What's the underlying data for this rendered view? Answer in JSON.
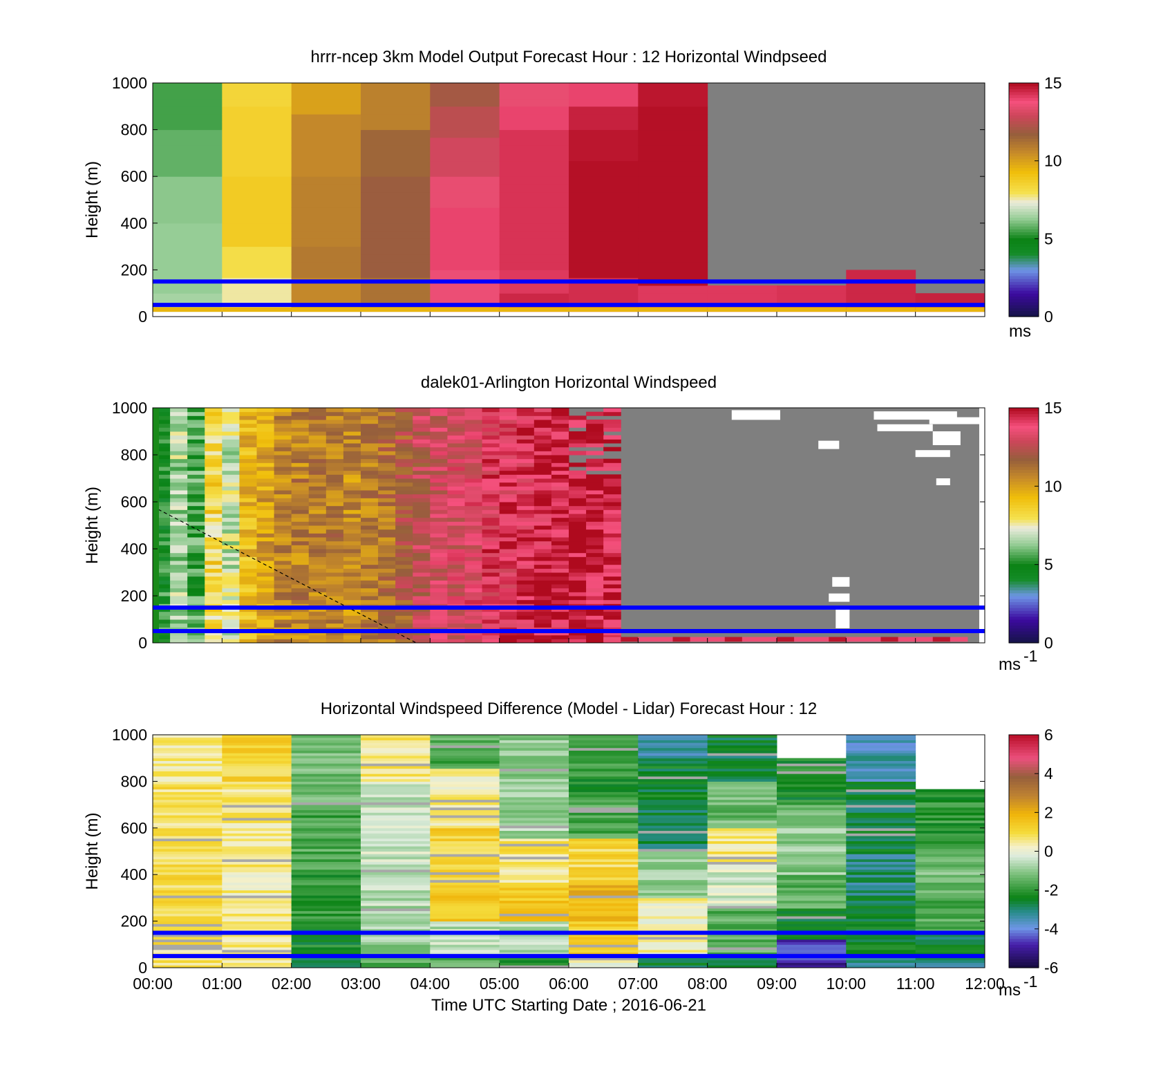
{
  "chart_data": [
    {
      "type": "heatmap",
      "title": "hrrr-ncep 3km Model Output   Forecast Hour : 12 Horizontal Windpseed",
      "ylabel": "Height (m)",
      "xlabel": "",
      "ylim": [
        0,
        1000
      ],
      "yticks": [
        "0",
        "200",
        "400",
        "600",
        "800",
        "1000"
      ],
      "xlim": [
        "00:00",
        "12:00"
      ],
      "colorbar": {
        "min": 0,
        "max": 15,
        "ticks": [
          "0",
          "5",
          "10",
          "15"
        ],
        "unit": "ms",
        "unit_sup": ""
      },
      "reference_lines_m": [
        50,
        150
      ],
      "columns": [
        {
          "time": "00:00-01:00",
          "levels": [
            [
              1000,
              5.5
            ],
            [
              800,
              5.8
            ],
            [
              600,
              6.2
            ],
            [
              400,
              6.3
            ],
            [
              100,
              6.5
            ]
          ]
        },
        {
          "time": "01:00-02:00",
          "levels": [
            [
              1000,
              8.4
            ],
            [
              900,
              8.6
            ],
            [
              600,
              8.8
            ],
            [
              300,
              8.1
            ],
            [
              150,
              7.6
            ]
          ]
        },
        {
          "time": "02:00-03:00",
          "levels": [
            [
              1000,
              10
            ],
            [
              850,
              10.6
            ],
            [
              600,
              10.8
            ],
            [
              300,
              11.0
            ],
            [
              150,
              10.6
            ]
          ]
        },
        {
          "time": "03:00-04:00",
          "levels": [
            [
              1000,
              10.8
            ],
            [
              800,
              11.5
            ],
            [
              600,
              11.8
            ],
            [
              300,
              11.8
            ],
            [
              150,
              11.2
            ]
          ]
        },
        {
          "time": "04:00-05:00",
          "levels": [
            [
              1000,
              12
            ],
            [
              900,
              12.5
            ],
            [
              750,
              13
            ],
            [
              600,
              13.5
            ],
            [
              450,
              14
            ],
            [
              200,
              13.6
            ]
          ]
        },
        {
          "time": "05:00-06:00",
          "levels": [
            [
              1000,
              13.5
            ],
            [
              900,
              14
            ],
            [
              800,
              14.3
            ],
            [
              200,
              14.2
            ],
            [
              100,
              14.5
            ]
          ]
        },
        {
          "time": "06:00-07:00",
          "levels": [
            [
              1000,
              14
            ],
            [
              900,
              14.6
            ],
            [
              800,
              14.8
            ],
            [
              650,
              14.9
            ],
            [
              150,
              14.4
            ]
          ]
        },
        {
          "time": "07:00-08:00",
          "levels": [
            [
              1000,
              14.8
            ],
            [
              900,
              14.9
            ],
            [
              120,
              14.2
            ]
          ]
        },
        {
          "time": "08:00-09:00",
          "levels": [
            [
              120,
              14.2
            ]
          ]
        },
        {
          "time": "09:00-10:00",
          "levels": [
            [
              130,
              14.3
            ]
          ]
        },
        {
          "time": "10:00-11:00",
          "levels": [
            [
              200,
              14.5
            ]
          ]
        },
        {
          "time": "11:00-12:00",
          "levels": [
            [
              100,
              14.6
            ]
          ]
        }
      ]
    },
    {
      "type": "heatmap",
      "title": "dalek01-Arlington  Horizontal Windspeed",
      "ylabel": "Height (m)",
      "xlabel": "",
      "ylim": [
        0,
        1000
      ],
      "yticks": [
        "0",
        "200",
        "400",
        "600",
        "800",
        "1000"
      ],
      "xlim": [
        "00:00",
        "12:00"
      ],
      "colorbar": {
        "min": 0,
        "max": 15,
        "ticks": [
          "0",
          "5",
          "10",
          "15"
        ],
        "unit": "ms",
        "unit_sup": "-1"
      },
      "reference_lines_m": [
        50,
        150
      ],
      "dashed_line": [
        [
          "00:00",
          580
        ],
        [
          "03:48",
          0
        ]
      ],
      "time_mean_speed": [
        [
          "00:00",
          5.0
        ],
        [
          "00:15",
          6.6
        ],
        [
          "00:30",
          5.5
        ],
        [
          "00:45",
          8.4
        ],
        [
          "01:00",
          7.0
        ],
        [
          "01:15",
          9.3
        ],
        [
          "01:30",
          10.0
        ],
        [
          "01:45",
          10.6
        ],
        [
          "02:00",
          10.8
        ],
        [
          "02:15",
          10.9
        ],
        [
          "02:30",
          11.0
        ],
        [
          "02:45",
          10.6
        ],
        [
          "03:00",
          10.9
        ],
        [
          "03:15",
          11.2
        ],
        [
          "03:30",
          11.8
        ],
        [
          "03:45",
          12.6
        ],
        [
          "04:00",
          13.0
        ],
        [
          "04:15",
          13.2
        ],
        [
          "04:30",
          13.4
        ],
        [
          "04:45",
          13.9
        ],
        [
          "05:00",
          14.0
        ],
        [
          "05:15",
          14.2
        ],
        [
          "05:30",
          14.4
        ],
        [
          "05:45",
          14.6
        ],
        [
          "06:00",
          14.8
        ],
        [
          "06:15",
          14.6
        ],
        [
          "06:30",
          14.6
        ]
      ]
    },
    {
      "type": "heatmap",
      "title": "Horizontal Windspeed Difference (Model - Lidar) Forecast Hour : 12",
      "ylabel": "Height (m)",
      "xlabel": "Time UTC  Starting Date ; 2016-06-21",
      "ylim": [
        0,
        1000
      ],
      "yticks": [
        "0",
        "200",
        "400",
        "600",
        "800",
        "1000"
      ],
      "xticks": [
        "00:00",
        "01:00",
        "02:00",
        "03:00",
        "04:00",
        "05:00",
        "06:00",
        "07:00",
        "08:00",
        "09:00",
        "10:00",
        "11:00",
        "12:00"
      ],
      "colorbar": {
        "min": -6,
        "max": 6,
        "ticks": [
          "-6",
          "-4",
          "-2",
          "0",
          "2",
          "4",
          "6"
        ],
        "unit": "ms",
        "unit_sup": "-1"
      },
      "reference_lines_m": [
        50,
        150
      ],
      "columns": [
        {
          "time": "00:00-01:00",
          "levels": [
            [
              1000,
              0.5
            ],
            [
              800,
              0.8
            ],
            [
              400,
              1.0
            ],
            [
              100,
              0.7
            ]
          ]
        },
        {
          "time": "01:00-02:00",
          "levels": [
            [
              1000,
              1.1
            ],
            [
              800,
              0.6
            ],
            [
              400,
              0.5
            ],
            [
              100,
              0.4
            ]
          ]
        },
        {
          "time": "02:00-03:00",
          "levels": [
            [
              1000,
              -1.2
            ],
            [
              700,
              -1.7
            ],
            [
              400,
              -2.0
            ],
            [
              200,
              -2.3
            ],
            [
              50,
              -2.8
            ]
          ]
        },
        {
          "time": "03:00-04:00",
          "levels": [
            [
              1000,
              0.6
            ],
            [
              800,
              -0.4
            ],
            [
              400,
              -0.6
            ],
            [
              200,
              -0.9
            ],
            [
              50,
              -1.5
            ]
          ]
        },
        {
          "time": "04:00-05:00",
          "levels": [
            [
              1000,
              -1.6
            ],
            [
              850,
              0.4
            ],
            [
              600,
              1.2
            ],
            [
              400,
              1.3
            ],
            [
              200,
              -0.5
            ],
            [
              50,
              -1.5
            ]
          ]
        },
        {
          "time": "05:00-06:00",
          "levels": [
            [
              1000,
              -1.0
            ],
            [
              700,
              -0.8
            ],
            [
              550,
              0.7
            ],
            [
              350,
              1.5
            ],
            [
              200,
              -0.5
            ],
            [
              50,
              -2.0
            ]
          ]
        },
        {
          "time": "06:00-07:00",
          "levels": [
            [
              1000,
              -2.0
            ],
            [
              700,
              -1.6
            ],
            [
              550,
              1.0
            ],
            [
              350,
              1.9
            ],
            [
              200,
              1.2
            ],
            [
              50,
              0.1
            ]
          ]
        },
        {
          "time": "07:00-08:00",
          "levels": [
            [
              1000,
              -3.5
            ],
            [
              900,
              -2.5
            ],
            [
              700,
              -2.8
            ],
            [
              500,
              -1.0
            ],
            [
              300,
              0.3
            ],
            [
              50,
              -2.6
            ]
          ]
        },
        {
          "time": "08:00-09:00",
          "levels": [
            [
              1000,
              -2.6
            ],
            [
              800,
              -1.3
            ],
            [
              600,
              0.6
            ],
            [
              450,
              -0.3
            ],
            [
              250,
              -1.5
            ],
            [
              50,
              -2.8
            ]
          ]
        },
        {
          "time": "09:00-10:00",
          "levels": [
            [
              900,
              -2.2
            ],
            [
              700,
              -1.0
            ],
            [
              400,
              -1.6
            ],
            [
              250,
              -2.6
            ],
            [
              120,
              -4.6
            ],
            [
              30,
              -5.0
            ]
          ]
        },
        {
          "time": "10:00-11:00",
          "levels": [
            [
              1000,
              -3.5
            ],
            [
              800,
              -2.6
            ],
            [
              500,
              -3.0
            ],
            [
              300,
              -2.5
            ],
            [
              150,
              -2.4
            ],
            [
              50,
              -3.0
            ]
          ]
        },
        {
          "time": "11:00-12:00",
          "levels": [
            [
              770,
              -2.0
            ],
            [
              500,
              -1.2
            ],
            [
              300,
              -1.6
            ],
            [
              150,
              -2.6
            ],
            [
              50,
              -3.0
            ]
          ]
        }
      ]
    }
  ]
}
